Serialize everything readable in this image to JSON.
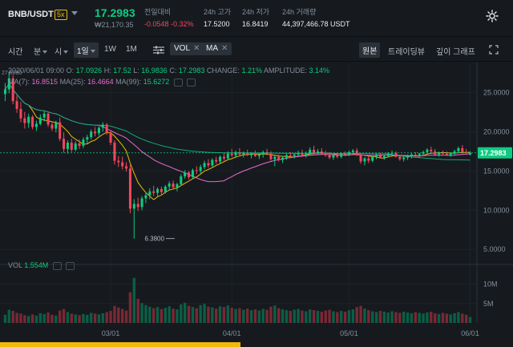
{
  "header": {
    "pair": "BNB/USDT",
    "leverage": "5x",
    "last_price": "17.2983",
    "fiat_price": "₩21,170.35",
    "stats": [
      {
        "label": "전일대비",
        "value": "-0.0548 -0.32%",
        "negative": true
      },
      {
        "label": "24h 고가",
        "value": "17.5200",
        "negative": false
      },
      {
        "label": "24h 저가",
        "value": "16.8419",
        "negative": false
      },
      {
        "label": "24h 거래량",
        "value": "44,397,466.78 USDT",
        "negative": false
      }
    ]
  },
  "toolbar": {
    "time_label": "시간",
    "minute_label": "분",
    "hour_label": "시",
    "selected_interval": "1일",
    "week_label": "1W",
    "month_label": "1M",
    "vol_chip": "VOL",
    "ma_chip": "MA",
    "view_original": "원본",
    "view_tradingview": "트레이딩뷰",
    "view_depth": "깊이 그래프"
  },
  "legend": {
    "date": "2020/06/01 09:00",
    "o_label": "O:",
    "o": "17.0926",
    "h_label": "H:",
    "h": "17.52",
    "l_label": "L:",
    "l": "16.9836",
    "c_label": "C:",
    "c": "17.2983",
    "change_label": "CHANGE:",
    "change": "1.21%",
    "amp_label": "AMPLITUDE:",
    "amp": "3.14%",
    "ma7_label": "MA(7):",
    "ma7": "16.8515",
    "ma25_label": "MA(25):",
    "ma25": "16.4664",
    "ma99_label": "MA(99):",
    "ma99": "15.6272",
    "vol_label": "VOL",
    "vol": "1.554M"
  },
  "colors": {
    "up": "#0ecb81",
    "down": "#f6465d",
    "ma7": "#f0b90b",
    "ma25": "#e66bd0",
    "ma99": "#0ecb81",
    "price_tag": "#0ecb81"
  },
  "chart_data": {
    "type": "candlestick",
    "y_ticks": [
      "25.0000",
      "20.0000",
      "15.0000",
      "10.0000",
      "5.0000"
    ],
    "y_values": [
      25,
      20,
      15,
      10,
      5
    ],
    "ylim": [
      4,
      28
    ],
    "vol_ticks": [
      "10M",
      "5M"
    ],
    "vol_values": [
      10000000,
      5000000
    ],
    "vol_lim": [
      0,
      13000000
    ],
    "x_ticks": [
      "03/01",
      "04/01",
      "05/01",
      "06/01"
    ],
    "x_tick_index": [
      27,
      58,
      88,
      119
    ],
    "current_price_tag": "17.2983",
    "current_price": 17.2983,
    "low_annotation": "6.3800",
    "low_index": 44,
    "low_value": 6.38,
    "high_annotation": "27.6000",
    "candles": [
      [
        24.8,
        26.2,
        23.9,
        25.4
      ],
      [
        25.4,
        27.6,
        24.9,
        26.8
      ],
      [
        26.8,
        27.2,
        23.5,
        23.9
      ],
      [
        23.9,
        24.6,
        22.4,
        22.9
      ],
      [
        22.9,
        23.8,
        21.2,
        21.7
      ],
      [
        21.7,
        22.5,
        20.4,
        21.1
      ],
      [
        21.1,
        22.3,
        20.5,
        21.9
      ],
      [
        21.9,
        22.1,
        20.3,
        20.6
      ],
      [
        20.6,
        21.4,
        20.1,
        21.0
      ],
      [
        21.0,
        22.2,
        20.8,
        21.8
      ],
      [
        21.8,
        22.6,
        21.3,
        22.3
      ],
      [
        22.3,
        22.5,
        20.6,
        20.9
      ],
      [
        20.9,
        21.3,
        20.1,
        20.4
      ],
      [
        20.4,
        21.4,
        19.9,
        21.2
      ],
      [
        21.2,
        21.8,
        18.8,
        19.1
      ],
      [
        19.1,
        19.9,
        17.3,
        17.8
      ],
      [
        17.8,
        18.9,
        17.2,
        18.6
      ],
      [
        18.6,
        19.1,
        17.4,
        17.7
      ],
      [
        17.7,
        18.8,
        17.5,
        18.5
      ],
      [
        18.5,
        19.0,
        17.8,
        18.2
      ],
      [
        18.2,
        19.3,
        17.9,
        19.0
      ],
      [
        19.0,
        19.6,
        18.5,
        19.3
      ],
      [
        19.3,
        20.3,
        19.0,
        20.0
      ],
      [
        20.0,
        20.6,
        19.4,
        19.8
      ],
      [
        19.8,
        20.7,
        19.5,
        20.5
      ],
      [
        20.5,
        21.2,
        20.0,
        20.9
      ],
      [
        20.9,
        21.1,
        19.6,
        19.9
      ],
      [
        19.9,
        20.1,
        18.3,
        18.6
      ],
      [
        18.6,
        18.9,
        15.8,
        16.3
      ],
      [
        16.3,
        16.9,
        15.5,
        16.1
      ],
      [
        16.1,
        16.8,
        15.2,
        15.6
      ],
      [
        15.6,
        16.1,
        14.9,
        15.3
      ],
      [
        15.3,
        15.8,
        9.6,
        10.2
      ],
      [
        10.2,
        11.4,
        6.38,
        10.8
      ],
      [
        10.8,
        11.6,
        9.9,
        10.4
      ],
      [
        10.4,
        11.8,
        10.0,
        11.5
      ],
      [
        11.5,
        12.3,
        10.9,
        11.9
      ],
      [
        11.9,
        12.8,
        11.4,
        12.4
      ],
      [
        12.4,
        13.1,
        11.8,
        12.2
      ],
      [
        12.2,
        12.9,
        11.7,
        12.7
      ],
      [
        12.7,
        13.0,
        11.9,
        12.3
      ],
      [
        12.3,
        13.2,
        12.1,
        13.0
      ],
      [
        13.0,
        13.7,
        12.5,
        13.4
      ],
      [
        13.4,
        13.8,
        12.6,
        12.9
      ],
      [
        12.9,
        13.5,
        12.4,
        13.3
      ],
      [
        13.3,
        14.6,
        13.1,
        14.3
      ],
      [
        14.3,
        15.1,
        14.0,
        14.8
      ],
      [
        14.8,
        15.0,
        13.9,
        14.2
      ],
      [
        14.2,
        15.3,
        14.0,
        15.1
      ],
      [
        15.1,
        15.6,
        14.6,
        15.0
      ],
      [
        15.0,
        15.8,
        14.7,
        15.5
      ],
      [
        15.5,
        16.3,
        15.2,
        16.0
      ],
      [
        16.0,
        16.5,
        15.4,
        15.7
      ],
      [
        15.7,
        16.6,
        15.5,
        16.4
      ],
      [
        16.4,
        16.8,
        15.9,
        16.2
      ],
      [
        16.2,
        17.0,
        16.0,
        16.8
      ],
      [
        16.8,
        17.3,
        16.3,
        16.6
      ],
      [
        16.6,
        17.5,
        16.4,
        17.2
      ],
      [
        17.2,
        17.8,
        16.8,
        17.0
      ],
      [
        17.0,
        17.6,
        16.6,
        17.4
      ],
      [
        17.4,
        17.9,
        16.9,
        17.1
      ],
      [
        17.1,
        17.5,
        16.7,
        17.3
      ],
      [
        17.3,
        17.7,
        16.9,
        17.0
      ],
      [
        17.0,
        17.4,
        16.6,
        17.2
      ],
      [
        17.2,
        17.6,
        16.8,
        16.9
      ],
      [
        16.9,
        17.3,
        16.5,
        17.1
      ],
      [
        17.1,
        17.6,
        16.7,
        17.4
      ],
      [
        17.4,
        17.8,
        17.0,
        17.2
      ],
      [
        17.2,
        17.5,
        16.3,
        16.5
      ],
      [
        16.5,
        17.0,
        15.6,
        16.8
      ],
      [
        16.8,
        17.1,
        16.2,
        16.4
      ],
      [
        16.4,
        16.9,
        16.0,
        16.7
      ],
      [
        16.7,
        17.2,
        16.4,
        17.0
      ],
      [
        17.0,
        17.4,
        16.7,
        16.9
      ],
      [
        16.9,
        17.3,
        16.6,
        17.1
      ],
      [
        17.1,
        17.6,
        16.9,
        17.3
      ],
      [
        17.3,
        17.7,
        16.8,
        17.0
      ],
      [
        17.0,
        17.5,
        16.7,
        17.2
      ],
      [
        17.2,
        18.0,
        17.0,
        17.7
      ],
      [
        17.7,
        18.2,
        17.1,
        17.3
      ],
      [
        17.3,
        17.8,
        17.0,
        17.5
      ],
      [
        17.5,
        17.9,
        17.1,
        17.2
      ],
      [
        17.2,
        17.6,
        16.8,
        17.0
      ],
      [
        17.0,
        17.4,
        16.5,
        16.7
      ],
      [
        16.7,
        17.2,
        16.4,
        17.0
      ],
      [
        17.0,
        17.3,
        16.6,
        16.8
      ],
      [
        16.8,
        17.4,
        16.6,
        17.2
      ],
      [
        17.2,
        17.5,
        16.9,
        17.1
      ],
      [
        17.1,
        17.6,
        16.9,
        17.4
      ],
      [
        17.4,
        17.8,
        17.2,
        17.6
      ],
      [
        17.6,
        17.9,
        16.9,
        17.0
      ],
      [
        17.0,
        17.3,
        15.9,
        16.2
      ],
      [
        16.2,
        16.8,
        15.7,
        16.6
      ],
      [
        16.6,
        17.0,
        16.0,
        16.3
      ],
      [
        16.3,
        16.9,
        16.1,
        16.8
      ],
      [
        16.8,
        17.2,
        16.5,
        17.0
      ],
      [
        17.0,
        17.3,
        16.6,
        16.7
      ],
      [
        16.7,
        17.1,
        16.4,
        16.9
      ],
      [
        16.9,
        17.4,
        16.7,
        17.2
      ],
      [
        17.2,
        17.6,
        17.0,
        17.3
      ],
      [
        17.3,
        17.5,
        16.7,
        16.8
      ],
      [
        16.8,
        17.0,
        16.3,
        16.5
      ],
      [
        16.5,
        16.9,
        16.2,
        16.7
      ],
      [
        16.7,
        17.1,
        16.4,
        16.9
      ],
      [
        16.9,
        17.3,
        16.6,
        17.1
      ],
      [
        17.1,
        17.4,
        16.8,
        17.0
      ],
      [
        17.0,
        17.3,
        16.7,
        17.2
      ],
      [
        17.2,
        17.6,
        17.0,
        17.4
      ],
      [
        17.4,
        17.9,
        17.2,
        17.7
      ],
      [
        17.7,
        18.1,
        17.3,
        17.5
      ],
      [
        17.5,
        17.8,
        16.9,
        17.1
      ],
      [
        17.1,
        17.5,
        16.8,
        17.3
      ],
      [
        17.3,
        17.6,
        17.0,
        17.2
      ],
      [
        17.2,
        17.5,
        16.9,
        17.0
      ],
      [
        17.0,
        17.4,
        16.8,
        17.2
      ],
      [
        17.2,
        17.7,
        17.0,
        17.5
      ],
      [
        17.5,
        18.1,
        17.3,
        17.9
      ],
      [
        17.9,
        18.3,
        17.2,
        17.4
      ],
      [
        17.4,
        17.8,
        17.1,
        17.3
      ],
      [
        17.09,
        17.52,
        16.98,
        17.3
      ]
    ],
    "volumes_m": [
      2.1,
      3.4,
      3.1,
      2.6,
      2.4,
      2.0,
      1.8,
      2.2,
      1.9,
      2.5,
      2.3,
      2.7,
      2.1,
      1.9,
      3.2,
      3.6,
      2.8,
      2.4,
      2.2,
      2.0,
      2.3,
      2.1,
      2.6,
      2.4,
      2.2,
      2.5,
      2.8,
      3.1,
      4.4,
      4.0,
      3.6,
      3.2,
      7.9,
      11.6,
      6.2,
      5.1,
      4.6,
      4.2,
      3.8,
      4.1,
      3.6,
      3.9,
      4.3,
      3.7,
      3.5,
      4.8,
      5.2,
      4.4,
      4.1,
      3.8,
      4.6,
      4.9,
      4.2,
      4.0,
      3.7,
      4.3,
      4.1,
      4.5,
      3.9,
      3.6,
      3.8,
      3.4,
      3.7,
      3.3,
      3.5,
      3.2,
      3.6,
      3.4,
      4.2,
      4.5,
      3.8,
      3.5,
      3.3,
      3.1,
      3.4,
      3.6,
      3.2,
      3.0,
      3.5,
      3.3,
      3.1,
      2.9,
      3.2,
      3.4,
      3.0,
      2.8,
      3.1,
      2.9,
      3.3,
      3.5,
      4.1,
      4.4,
      3.7,
      3.3,
      3.0,
      2.8,
      3.1,
      2.9,
      2.7,
      3.0,
      2.8,
      2.6,
      2.9,
      2.7,
      2.5,
      2.8,
      2.6,
      2.4,
      2.7,
      2.9,
      2.5,
      2.3,
      2.6,
      2.4,
      2.2,
      2.5,
      2.8,
      2.4,
      2.1,
      1.55
    ]
  }
}
